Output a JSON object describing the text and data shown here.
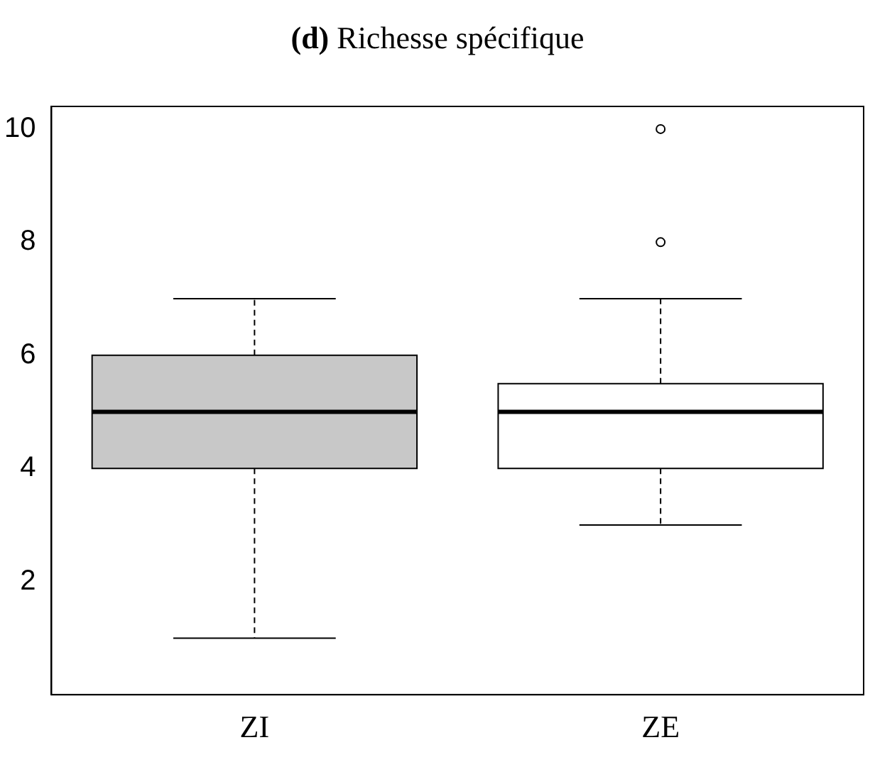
{
  "chart_data": {
    "type": "box",
    "title": "(d) Richesse spécifique",
    "categories": [
      "ZI",
      "ZE"
    ],
    "boxes": [
      {
        "low": 1,
        "q1": 4,
        "median": 5,
        "q3": 6,
        "high": 7
      },
      {
        "low": 3,
        "q1": 4,
        "median": 5,
        "q3": 5.5,
        "high": 7,
        "outliers": [
          8,
          10
        ]
      }
    ],
    "colors": [
      "#c8c8c8",
      "#ffffff"
    ],
    "ylim": [
      0,
      10.4
    ],
    "yticks": [
      2,
      4,
      6,
      8,
      10
    ],
    "grid": false,
    "legend": false
  }
}
